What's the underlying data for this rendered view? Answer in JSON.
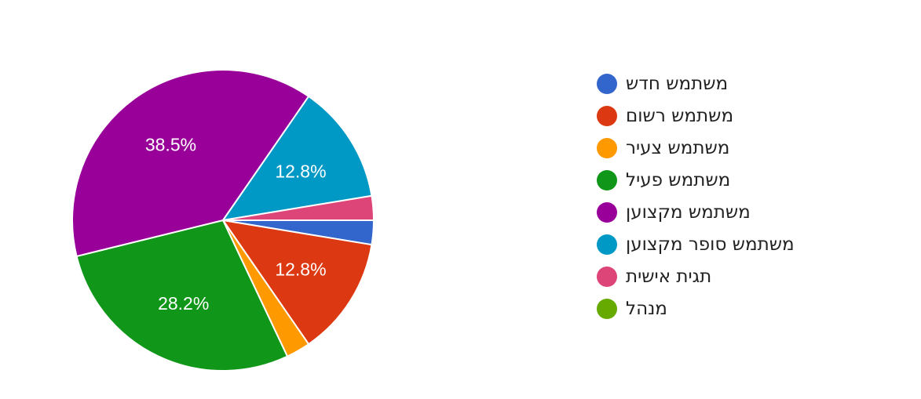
{
  "chart_data": {
    "type": "pie",
    "categories": [
      "משתמש חדש",
      "משתמש רשום",
      "משתמש צעיר",
      "משתמש פעיל",
      "משתמש מקצוען",
      "משתמש סופר מקצוען",
      "תגית אישית",
      "מנהל"
    ],
    "values": [
      2.6,
      12.8,
      2.6,
      28.2,
      38.5,
      12.8,
      2.6,
      0
    ],
    "data_labels": [
      "",
      "12.8%",
      "",
      "28.2%",
      "38.5%",
      "12.8%",
      "",
      ""
    ],
    "colors": [
      "#3366cc",
      "#dc3912",
      "#ff9900",
      "#109618",
      "#990099",
      "#0099c6",
      "#dd4477",
      "#66aa00"
    ],
    "legend_position": "right",
    "start_angle_deg": 90,
    "direction": "clockwise"
  }
}
